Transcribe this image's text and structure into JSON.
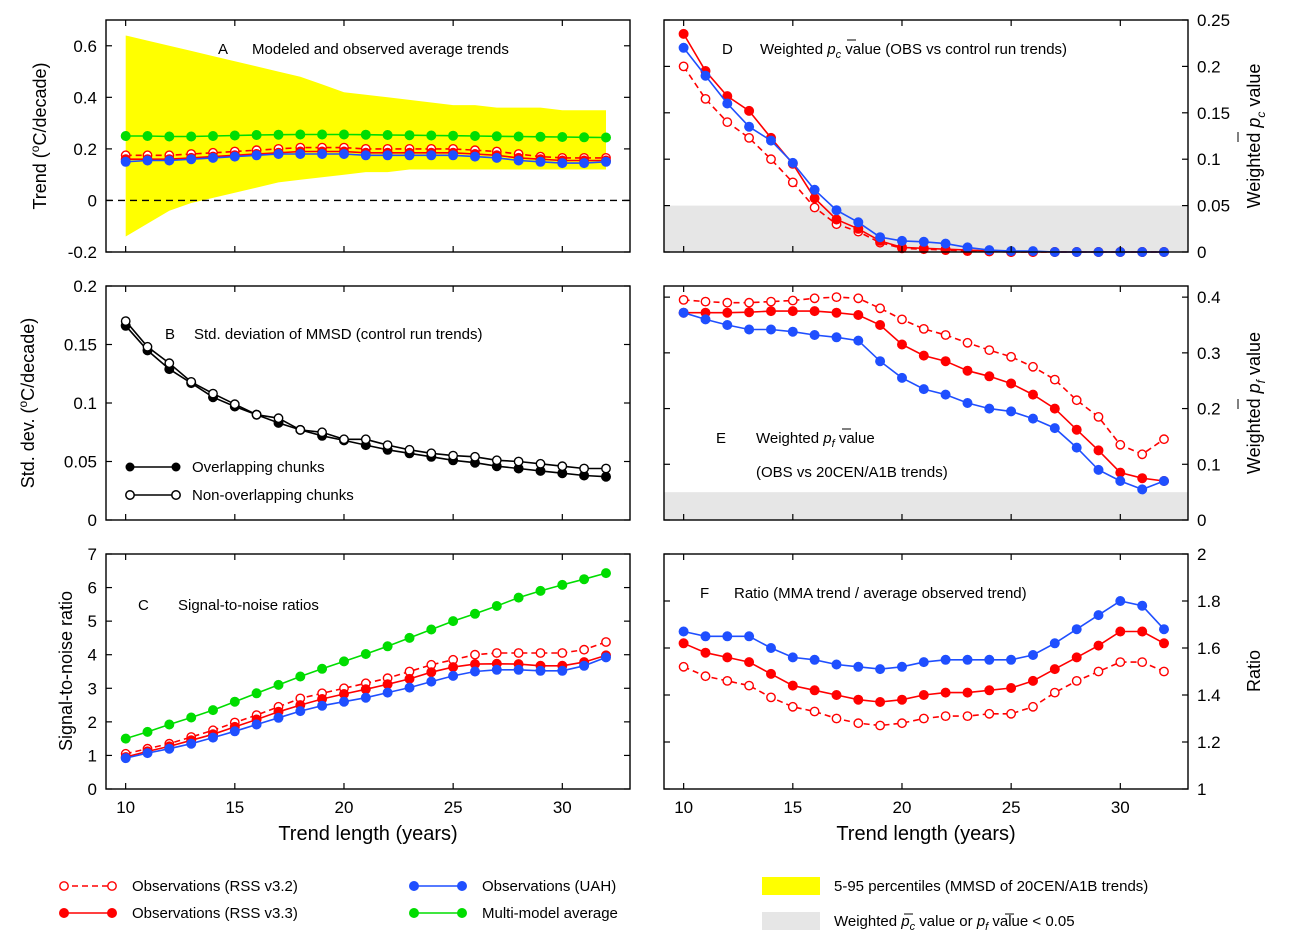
{
  "chart_data": [
    {
      "panel": "A",
      "type": "line",
      "title": "Modeled and observed average trends",
      "x": [
        10,
        11,
        12,
        13,
        14,
        15,
        16,
        17,
        18,
        19,
        20,
        21,
        22,
        23,
        24,
        25,
        26,
        27,
        28,
        29,
        30,
        31,
        32
      ],
      "ylabel": "Trend (°C/decade)",
      "ylim": [
        -0.2,
        0.7
      ],
      "yticks": [
        -0.2,
        0,
        0.2,
        0.4,
        0.6
      ],
      "ytick_labels": [
        "-0.2",
        "0",
        "0.2",
        "0.4",
        "0.6"
      ],
      "band": {
        "name": "5-95 percentiles (MMSD of 20CEN/A1B trends)",
        "color": "#ffff00",
        "upper": [
          0.64,
          0.62,
          0.6,
          0.58,
          0.56,
          0.54,
          0.52,
          0.5,
          0.48,
          0.45,
          0.42,
          0.41,
          0.4,
          0.39,
          0.38,
          0.37,
          0.37,
          0.36,
          0.36,
          0.36,
          0.35,
          0.35,
          0.35
        ],
        "lower": [
          -0.14,
          -0.09,
          -0.04,
          -0.01,
          0.01,
          0.03,
          0.05,
          0.07,
          0.08,
          0.09,
          0.1,
          0.11,
          0.11,
          0.12,
          0.12,
          0.12,
          0.12,
          0.12,
          0.12,
          0.12,
          0.12,
          0.12,
          0.12
        ]
      },
      "hline": 0,
      "series": [
        {
          "name": "Observations (RSS v3.2)",
          "color": "#ff0000",
          "dashed": true,
          "marker": "open",
          "values": [
            0.175,
            0.175,
            0.175,
            0.18,
            0.185,
            0.19,
            0.195,
            0.2,
            0.205,
            0.205,
            0.205,
            0.2,
            0.2,
            0.2,
            0.2,
            0.2,
            0.195,
            0.19,
            0.18,
            0.17,
            0.165,
            0.165,
            0.165
          ]
        },
        {
          "name": "Observations (RSS v3.3)",
          "color": "#ff0000",
          "dashed": false,
          "marker": "filled",
          "values": [
            0.16,
            0.16,
            0.16,
            0.165,
            0.17,
            0.175,
            0.18,
            0.185,
            0.19,
            0.19,
            0.19,
            0.185,
            0.185,
            0.185,
            0.185,
            0.185,
            0.18,
            0.175,
            0.165,
            0.16,
            0.155,
            0.155,
            0.155
          ]
        },
        {
          "name": "Observations (UAH)",
          "color": "#1f4fff",
          "dashed": false,
          "marker": "filled",
          "values": [
            0.15,
            0.155,
            0.155,
            0.16,
            0.165,
            0.17,
            0.175,
            0.18,
            0.18,
            0.18,
            0.18,
            0.175,
            0.175,
            0.175,
            0.175,
            0.175,
            0.17,
            0.165,
            0.155,
            0.15,
            0.145,
            0.145,
            0.15
          ]
        },
        {
          "name": "Multi-model average",
          "color": "#00dd00",
          "dashed": false,
          "marker": "filled",
          "values": [
            0.25,
            0.25,
            0.248,
            0.248,
            0.25,
            0.252,
            0.254,
            0.255,
            0.256,
            0.256,
            0.256,
            0.255,
            0.254,
            0.253,
            0.252,
            0.251,
            0.25,
            0.249,
            0.248,
            0.247,
            0.246,
            0.245,
            0.244
          ]
        }
      ]
    },
    {
      "panel": "B",
      "type": "line",
      "title": "Std. deviation of MMSD (control run trends)",
      "x": [
        10,
        11,
        12,
        13,
        14,
        15,
        16,
        17,
        18,
        19,
        20,
        21,
        22,
        23,
        24,
        25,
        26,
        27,
        28,
        29,
        30,
        31,
        32
      ],
      "ylabel": "Std. dev. (°C/decade)",
      "ylim": [
        0,
        0.2
      ],
      "yticks": [
        0,
        0.05,
        0.1,
        0.15,
        0.2
      ],
      "ytick_labels": [
        "0",
        "0.05",
        "0.1",
        "0.15",
        "0.2"
      ],
      "series": [
        {
          "name": "Overlapping chunks",
          "color": "#000000",
          "marker": "filled",
          "values": [
            0.166,
            0.145,
            0.129,
            0.117,
            0.105,
            0.097,
            0.09,
            0.083,
            0.077,
            0.072,
            0.068,
            0.064,
            0.06,
            0.057,
            0.054,
            0.051,
            0.049,
            0.046,
            0.044,
            0.042,
            0.04,
            0.038,
            0.037
          ]
        },
        {
          "name": "Non-overlapping chunks",
          "color": "#000000",
          "marker": "open",
          "values": [
            0.17,
            0.148,
            0.134,
            0.118,
            0.108,
            0.099,
            0.09,
            0.087,
            0.077,
            0.075,
            0.069,
            0.069,
            0.064,
            0.06,
            0.057,
            0.055,
            0.054,
            0.051,
            0.05,
            0.048,
            0.046,
            0.044,
            0.044
          ]
        }
      ]
    },
    {
      "panel": "C",
      "type": "line",
      "title": "Signal-to-noise ratios",
      "x": [
        10,
        11,
        12,
        13,
        14,
        15,
        16,
        17,
        18,
        19,
        20,
        21,
        22,
        23,
        24,
        25,
        26,
        27,
        28,
        29,
        30,
        31,
        32
      ],
      "xlabel": "Trend length (years)",
      "ylabel": "Signal-to-noise ratio",
      "ylim": [
        0,
        7
      ],
      "yticks": [
        0,
        1,
        2,
        3,
        4,
        5,
        6,
        7
      ],
      "ytick_labels": [
        "0",
        "1",
        "2",
        "3",
        "4",
        "5",
        "6",
        "7"
      ],
      "series": [
        {
          "name": "Observations (RSS v3.2)",
          "color": "#ff0000",
          "dashed": true,
          "marker": "open",
          "values": [
            1.05,
            1.2,
            1.35,
            1.55,
            1.75,
            1.98,
            2.2,
            2.45,
            2.7,
            2.85,
            3.0,
            3.15,
            3.3,
            3.5,
            3.7,
            3.85,
            4.0,
            4.05,
            4.05,
            4.05,
            4.05,
            4.15,
            4.38
          ]
        },
        {
          "name": "Observations (RSS v3.3)",
          "color": "#ff0000",
          "dashed": false,
          "marker": "filled",
          "values": [
            0.95,
            1.12,
            1.27,
            1.45,
            1.63,
            1.85,
            2.07,
            2.3,
            2.5,
            2.68,
            2.83,
            2.97,
            3.12,
            3.28,
            3.48,
            3.63,
            3.72,
            3.73,
            3.72,
            3.67,
            3.67,
            3.78,
            3.98
          ]
        },
        {
          "name": "Observations (UAH)",
          "color": "#1f4fff",
          "dashed": false,
          "marker": "filled",
          "values": [
            0.92,
            1.07,
            1.2,
            1.35,
            1.53,
            1.72,
            1.92,
            2.12,
            2.32,
            2.48,
            2.6,
            2.72,
            2.87,
            3.02,
            3.2,
            3.37,
            3.5,
            3.55,
            3.55,
            3.52,
            3.52,
            3.67,
            3.92
          ]
        },
        {
          "name": "Multi-model average",
          "color": "#00dd00",
          "dashed": false,
          "marker": "filled",
          "values": [
            1.5,
            1.7,
            1.92,
            2.13,
            2.35,
            2.6,
            2.85,
            3.1,
            3.35,
            3.58,
            3.8,
            4.02,
            4.25,
            4.5,
            4.75,
            5.0,
            5.22,
            5.45,
            5.7,
            5.9,
            6.08,
            6.25,
            6.43
          ]
        }
      ]
    },
    {
      "panel": "D",
      "type": "line",
      "title": "Weighted p̄c value (OBS vs control run trends)",
      "x": [
        10,
        11,
        12,
        13,
        14,
        15,
        16,
        17,
        18,
        19,
        20,
        21,
        22,
        23,
        24,
        25,
        26,
        27,
        28,
        29,
        30,
        31,
        32
      ],
      "ylabel": "Weighted p̄c value",
      "ylim": [
        0,
        0.25
      ],
      "yticks": [
        0,
        0.05,
        0.1,
        0.15,
        0.2,
        0.25
      ],
      "ytick_labels": [
        "0",
        "0.05",
        "0.1",
        "0.15",
        "0.2",
        "0.25"
      ],
      "threshold_band": {
        "below": 0.05,
        "color": "#e6e6e6"
      },
      "series": [
        {
          "name": "Observations (RSS v3.2)",
          "color": "#ff0000",
          "dashed": true,
          "marker": "open",
          "values": [
            0.2,
            0.165,
            0.14,
            0.123,
            0.1,
            0.075,
            0.048,
            0.03,
            0.022,
            0.01,
            0.004,
            0.003,
            0.002,
            0.001,
            0.0005,
            0,
            0,
            0,
            0,
            0,
            0,
            0,
            0
          ]
        },
        {
          "name": "Observations (RSS v3.3)",
          "color": "#ff0000",
          "dashed": false,
          "marker": "filled",
          "values": [
            0.235,
            0.195,
            0.168,
            0.152,
            0.123,
            0.095,
            0.058,
            0.035,
            0.025,
            0.012,
            0.005,
            0.004,
            0.003,
            0.002,
            0.001,
            0,
            0,
            0,
            0,
            0,
            0,
            0,
            0
          ]
        },
        {
          "name": "Observations (UAH)",
          "color": "#1f4fff",
          "dashed": false,
          "marker": "filled",
          "values": [
            0.22,
            0.19,
            0.16,
            0.135,
            0.12,
            0.096,
            0.067,
            0.045,
            0.032,
            0.016,
            0.012,
            0.011,
            0.009,
            0.005,
            0.002,
            0.001,
            0.001,
            0,
            0,
            0,
            0,
            0,
            0
          ]
        }
      ]
    },
    {
      "panel": "E",
      "type": "line",
      "title": "Weighted p̄f value",
      "subtitle": "(OBS vs 20CEN/A1B trends)",
      "x": [
        10,
        11,
        12,
        13,
        14,
        15,
        16,
        17,
        18,
        19,
        20,
        21,
        22,
        23,
        24,
        25,
        26,
        27,
        28,
        29,
        30,
        31,
        32
      ],
      "ylabel": "Weighted p̄f value",
      "ylim": [
        0,
        0.42
      ],
      "yticks": [
        0,
        0.1,
        0.2,
        0.3,
        0.4
      ],
      "ytick_labels": [
        "0",
        "0.1",
        "0.2",
        "0.3",
        "0.4"
      ],
      "threshold_band": {
        "below": 0.05,
        "color": "#e6e6e6"
      },
      "series": [
        {
          "name": "Observations (RSS v3.2)",
          "color": "#ff0000",
          "dashed": true,
          "marker": "open",
          "values": [
            0.395,
            0.392,
            0.39,
            0.39,
            0.392,
            0.394,
            0.398,
            0.4,
            0.398,
            0.38,
            0.36,
            0.343,
            0.332,
            0.318,
            0.305,
            0.293,
            0.275,
            0.252,
            0.215,
            0.185,
            0.135,
            0.118,
            0.145
          ]
        },
        {
          "name": "Observations (RSS v3.3)",
          "color": "#ff0000",
          "dashed": false,
          "marker": "filled",
          "values": [
            0.372,
            0.372,
            0.372,
            0.373,
            0.375,
            0.375,
            0.375,
            0.372,
            0.368,
            0.35,
            0.315,
            0.295,
            0.285,
            0.268,
            0.258,
            0.245,
            0.225,
            0.2,
            0.162,
            0.125,
            0.085,
            0.075,
            0.07
          ]
        },
        {
          "name": "Observations (UAH)",
          "color": "#1f4fff",
          "dashed": false,
          "marker": "filled",
          "values": [
            0.372,
            0.36,
            0.35,
            0.342,
            0.342,
            0.338,
            0.332,
            0.328,
            0.322,
            0.285,
            0.255,
            0.235,
            0.225,
            0.21,
            0.2,
            0.195,
            0.182,
            0.165,
            0.13,
            0.09,
            0.07,
            0.055,
            0.07
          ]
        }
      ]
    },
    {
      "panel": "F",
      "type": "line",
      "title": "Ratio (MMA trend / average observed trend)",
      "x": [
        10,
        11,
        12,
        13,
        14,
        15,
        16,
        17,
        18,
        19,
        20,
        21,
        22,
        23,
        24,
        25,
        26,
        27,
        28,
        29,
        30,
        31,
        32
      ],
      "xlabel": "Trend length (years)",
      "ylabel": "Ratio",
      "ylim": [
        1,
        2
      ],
      "yticks": [
        1,
        1.2,
        1.4,
        1.6,
        1.8,
        2
      ],
      "ytick_labels": [
        "1",
        "1.2",
        "1.4",
        "1.6",
        "1.8",
        "2"
      ],
      "series": [
        {
          "name": "Observations (RSS v3.2)",
          "color": "#ff0000",
          "dashed": true,
          "marker": "open",
          "values": [
            1.52,
            1.48,
            1.46,
            1.44,
            1.39,
            1.35,
            1.33,
            1.3,
            1.28,
            1.27,
            1.28,
            1.3,
            1.31,
            1.31,
            1.32,
            1.32,
            1.35,
            1.41,
            1.46,
            1.5,
            1.54,
            1.54,
            1.5
          ]
        },
        {
          "name": "Observations (RSS v3.3)",
          "color": "#ff0000",
          "dashed": false,
          "marker": "filled",
          "values": [
            1.62,
            1.58,
            1.56,
            1.54,
            1.49,
            1.44,
            1.42,
            1.4,
            1.38,
            1.37,
            1.38,
            1.4,
            1.41,
            1.41,
            1.42,
            1.43,
            1.46,
            1.51,
            1.56,
            1.61,
            1.67,
            1.67,
            1.62
          ]
        },
        {
          "name": "Observations (UAH)",
          "color": "#1f4fff",
          "dashed": false,
          "marker": "filled",
          "values": [
            1.67,
            1.65,
            1.65,
            1.65,
            1.6,
            1.56,
            1.55,
            1.53,
            1.52,
            1.51,
            1.52,
            1.54,
            1.55,
            1.55,
            1.55,
            1.55,
            1.57,
            1.62,
            1.68,
            1.74,
            1.8,
            1.78,
            1.68
          ]
        }
      ]
    }
  ],
  "legend": {
    "entries": [
      {
        "label": "Observations (RSS v3.2)",
        "color": "#ff0000",
        "dashed": true,
        "marker": "open"
      },
      {
        "label": "Observations (RSS v3.3)",
        "color": "#ff0000",
        "dashed": false,
        "marker": "filled"
      },
      {
        "label": "Observations (UAH)",
        "color": "#1f4fff",
        "dashed": false,
        "marker": "filled"
      },
      {
        "label": "Multi-model average",
        "color": "#00dd00",
        "dashed": false,
        "marker": "filled"
      }
    ],
    "band_label": "5-95 percentiles (MMSD of 20CEN/A1B trends)",
    "band_color": "#ffff00",
    "gray_label": "Weighted p̄c value or p̄f value < 0.05",
    "gray_color": "#e6e6e6"
  },
  "labels": {
    "xticks": [
      "10",
      "15",
      "20",
      "25",
      "30"
    ],
    "xtick_values": [
      10,
      15,
      20,
      25,
      30
    ],
    "xlabel": "Trend length (years)",
    "panelA": {
      "letter": "A",
      "title": "Modeled and observed average trends",
      "ylabel_pre": "Trend (",
      "ylabel_deg": "o",
      "ylabel_post": "C/decade)"
    },
    "panelB": {
      "letter": "B",
      "title": "Std. deviation of MMSD (control run trends)",
      "ylabel_pre": "Std. dev. (",
      "ylabel_deg": "o",
      "ylabel_post": "C/decade)",
      "leg1": "Overlapping chunks",
      "leg2": "Non-overlapping chunks"
    },
    "panelC": {
      "letter": "C",
      "title": "Signal-to-noise ratios",
      "ylabel": "Signal-to-noise ratio"
    },
    "panelD": {
      "letter": "D",
      "pre": "Weighted ",
      "p": "p",
      "sub": "c",
      "post": " value (OBS vs control run trends)",
      "ylabel_pre": "Weighted ",
      "ylabel_post": " value"
    },
    "panelE": {
      "letter": "E",
      "pre": "Weighted ",
      "p": "p",
      "sub": "f",
      "post": " value",
      "line2": "(OBS vs 20CEN/A1B trends)",
      "ylabel_pre": "Weighted ",
      "ylabel_post": " value"
    },
    "panelF": {
      "letter": "F",
      "title": "Ratio (MMA trend / average observed trend)",
      "ylabel": "Ratio"
    },
    "legend_gray": {
      "pre": "Weighted ",
      "mid": " value or ",
      "post": " value < 0.05",
      "p": "p",
      "sub_c": "c",
      "sub_f": "f"
    }
  }
}
